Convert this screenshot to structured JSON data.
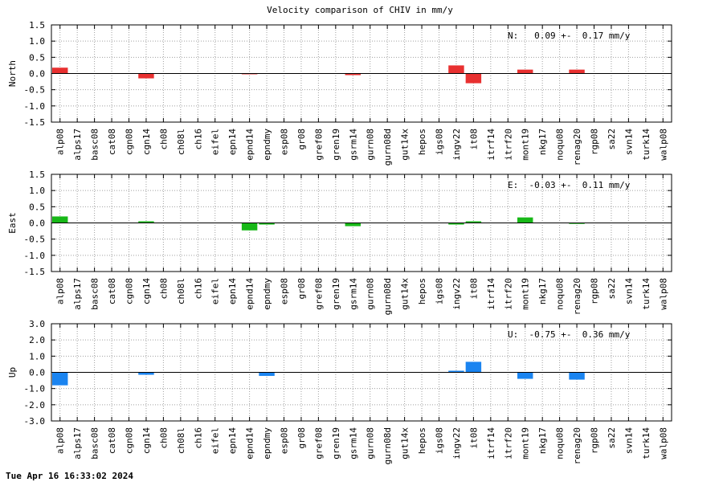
{
  "title": "Velocity comparison of CHIV in mm/y",
  "timestamp": "Tue Apr 16 16:33:02 2024",
  "chart_data": [
    {
      "type": "bar",
      "ylabel": "North",
      "stat": "N:   0.09 +-  0.17 mm/y",
      "color": "#e83030",
      "ylim": [
        -1.5,
        1.5
      ],
      "yticks": [
        "1.5",
        "1.0",
        "0.5",
        "0.0",
        "-0.5",
        "-1.0",
        "-1.5"
      ],
      "grid": true,
      "categories": [
        "alp08",
        "alps17",
        "basc08",
        "cat08",
        "cgn08",
        "cgn14",
        "ch08",
        "ch08l",
        "ch16",
        "eifel",
        "epn14",
        "epnd14",
        "epndmy",
        "esp08",
        "gr08",
        "gref08",
        "gren19",
        "gsrm14",
        "gurn08",
        "gurn08d",
        "gut14x",
        "hepos",
        "igs08",
        "ingv22",
        "it08",
        "itrf14",
        "itrf20",
        "mont19",
        "nkg17",
        "noqu08",
        "renag20",
        "rgp08",
        "sa22",
        "svn14",
        "turk14",
        "walp08"
      ],
      "values": [
        0.18,
        0,
        0,
        0,
        0,
        -0.15,
        0,
        0,
        0,
        0,
        0,
        -0.02,
        0,
        0,
        0,
        0,
        0,
        -0.05,
        0,
        0,
        0,
        0,
        0,
        0.25,
        -0.3,
        0,
        0,
        0.12,
        0,
        0,
        0.12,
        0,
        0,
        0,
        0,
        0
      ]
    },
    {
      "type": "bar",
      "ylabel": "East",
      "stat": "E:  -0.03 +-  0.11 mm/y",
      "color": "#18b818",
      "ylim": [
        -1.5,
        1.5
      ],
      "yticks": [
        "1.5",
        "1.0",
        "0.5",
        "0.0",
        "-0.5",
        "-1.0",
        "-1.5"
      ],
      "grid": true,
      "categories": [
        "alp08",
        "alps17",
        "basc08",
        "cat08",
        "cgn08",
        "cgn14",
        "ch08",
        "ch08l",
        "ch16",
        "eifel",
        "epn14",
        "epnd14",
        "epndmy",
        "esp08",
        "gr08",
        "gref08",
        "gren19",
        "gsrm14",
        "gurn08",
        "gurn08d",
        "gut14x",
        "hepos",
        "igs08",
        "ingv22",
        "it08",
        "itrf14",
        "itrf20",
        "mont19",
        "nkg17",
        "noqu08",
        "renag20",
        "rgp08",
        "sa22",
        "svn14",
        "turk14",
        "walp08"
      ],
      "values": [
        0.2,
        0,
        0,
        0,
        0,
        0.05,
        0,
        0,
        0,
        0,
        0,
        -0.23,
        -0.05,
        0,
        0,
        0,
        0,
        -0.1,
        0,
        0,
        0,
        0,
        0,
        -0.05,
        0.05,
        0,
        0,
        0.17,
        0,
        0,
        -0.03,
        0,
        0,
        0,
        0,
        0
      ]
    },
    {
      "type": "bar",
      "ylabel": "Up",
      "stat": "U:  -0.75 +-  0.36 mm/y",
      "color": "#1a84f0",
      "ylim": [
        -3.0,
        3.0
      ],
      "yticks": [
        "3.0",
        "2.0",
        "1.0",
        "0.0",
        "-1.0",
        "-2.0",
        "-3.0"
      ],
      "grid": true,
      "categories": [
        "alp08",
        "alps17",
        "basc08",
        "cat08",
        "cgn08",
        "cgn14",
        "ch08",
        "ch08l",
        "ch16",
        "eifel",
        "epn14",
        "epnd14",
        "epndmy",
        "esp08",
        "gr08",
        "gref08",
        "gren19",
        "gsrm14",
        "gurn08",
        "gurn08d",
        "gut14x",
        "hepos",
        "igs08",
        "ingv22",
        "it08",
        "itrf14",
        "itrf20",
        "mont19",
        "nkg17",
        "noqu08",
        "renag20",
        "rgp08",
        "sa22",
        "svn14",
        "turk14",
        "walp08"
      ],
      "values": [
        -0.8,
        0,
        0,
        0,
        0,
        -0.15,
        0,
        0,
        0,
        0,
        0,
        0,
        -0.22,
        0,
        0,
        0,
        0,
        0,
        0,
        0,
        0,
        0,
        0,
        0.1,
        0.65,
        0,
        0,
        -0.4,
        0,
        0,
        -0.45,
        0,
        0,
        0,
        0,
        0
      ]
    }
  ]
}
